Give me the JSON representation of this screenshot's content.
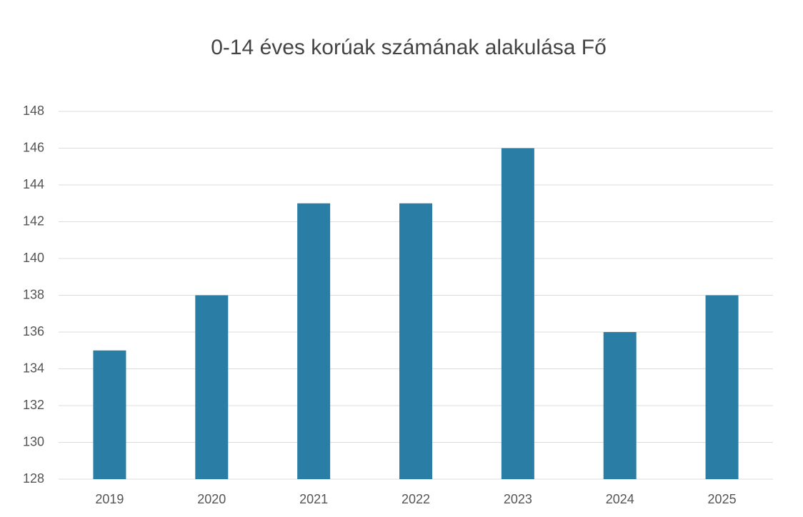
{
  "chart_data": {
    "type": "bar",
    "title": "0-14 éves korúak számának alakulása Fő",
    "categories": [
      "2019",
      "2020",
      "2021",
      "2022",
      "2023",
      "2024",
      "2025"
    ],
    "values": [
      135,
      138,
      143,
      143,
      146,
      136,
      138
    ],
    "color": "#2a7ea6",
    "ylim": [
      128,
      148
    ],
    "yticks": [
      128,
      130,
      132,
      134,
      136,
      138,
      140,
      142,
      144,
      146,
      148
    ],
    "grid": true
  }
}
